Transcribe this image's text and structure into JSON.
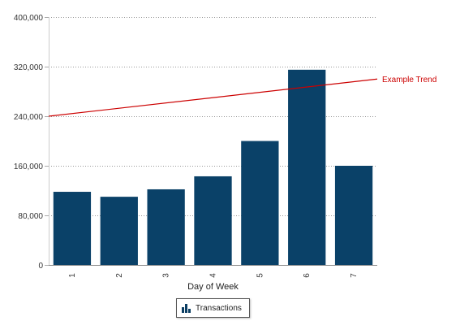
{
  "chart_data": {
    "type": "bar",
    "categories": [
      "1",
      "2",
      "3",
      "4",
      "5",
      "6",
      "7"
    ],
    "series": [
      {
        "name": "Transactions",
        "values": [
          118000,
          110000,
          122000,
          143000,
          200000,
          315000,
          160000
        ],
        "color": "#0a4168"
      }
    ],
    "trend": {
      "name": "Example Trend",
      "start_value": 240000,
      "end_value": 300000,
      "color": "#cc0000"
    },
    "xlabel": "Day of Week",
    "ylabel": "",
    "ylim": [
      0,
      400000
    ],
    "yticks": [
      0,
      80000,
      160000,
      240000,
      320000,
      400000
    ],
    "ytick_labels": [
      "0",
      "80,000",
      "160,000",
      "240,000",
      "320,000",
      "400,000"
    ],
    "grid": true,
    "legend_position": "bottom-center"
  }
}
